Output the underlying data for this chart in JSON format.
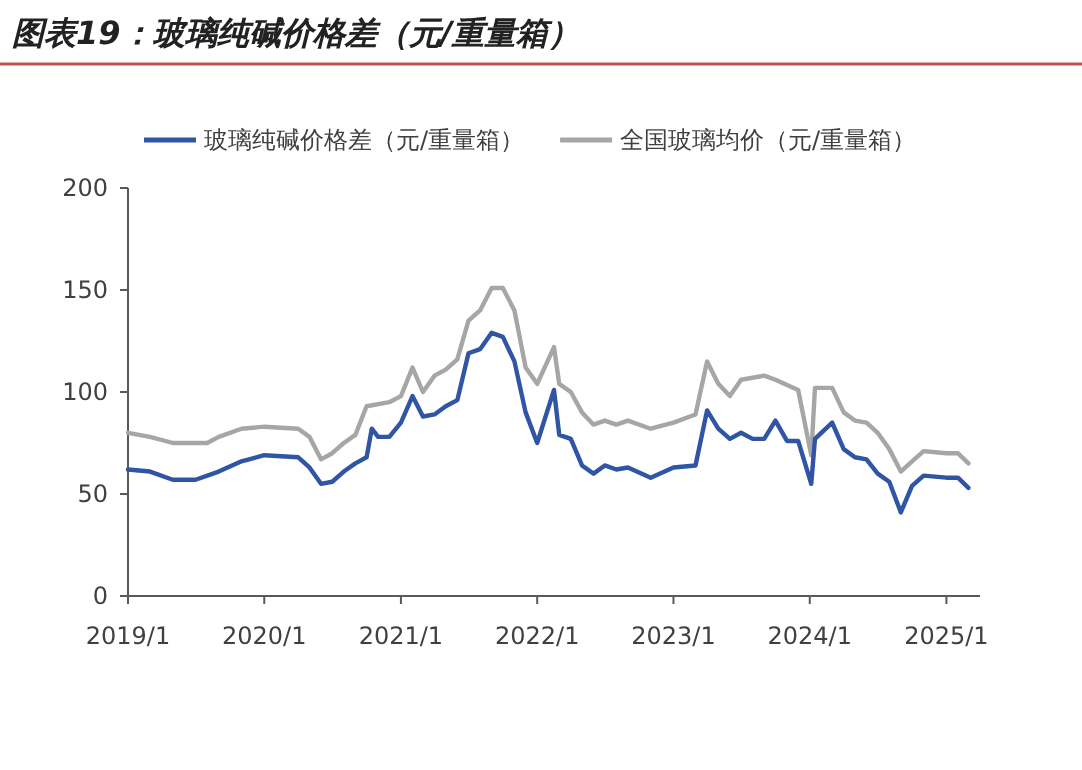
{
  "chart_data": {
    "type": "line",
    "title": "图表19：玻璃纯碱价格差（元/重量箱）",
    "legend": "top",
    "ylim": [
      0,
      200
    ],
    "yticks": [
      0,
      50,
      100,
      150,
      200
    ],
    "xlim": [
      "2019-01",
      "2025-04"
    ],
    "xticks": [
      {
        "value": "2019-01",
        "label": "2019/1"
      },
      {
        "value": "2020-01",
        "label": "2020/1"
      },
      {
        "value": "2021-01",
        "label": "2021/1"
      },
      {
        "value": "2022-01",
        "label": "2022/1"
      },
      {
        "value": "2023-01",
        "label": "2023/1"
      },
      {
        "value": "2024-01",
        "label": "2024/1"
      },
      {
        "value": "2025-01",
        "label": "2025/1"
      }
    ],
    "series": [
      {
        "name": "玻璃纯碱价格差（元/重量箱）",
        "color": "#2f55a4",
        "x": [
          "2019-01",
          "2019-03",
          "2019-05",
          "2019-07",
          "2019-09",
          "2019-11",
          "2020-01",
          "2020-04",
          "2020-05",
          "2020-06",
          "2020-07",
          "2020-08",
          "2020-09",
          "2020-10",
          "2020-10-15",
          "2020-11",
          "2020-12",
          "2021-01",
          "2021-02",
          "2021-03",
          "2021-04",
          "2021-05",
          "2021-06",
          "2021-07",
          "2021-08",
          "2021-09",
          "2021-10",
          "2021-11",
          "2021-12",
          "2022-01",
          "2022-02-15",
          "2022-03",
          "2022-04",
          "2022-05",
          "2022-06",
          "2022-07",
          "2022-08",
          "2022-09",
          "2022-11",
          "2023-01",
          "2023-03",
          "2023-04",
          "2023-05",
          "2023-06",
          "2023-07",
          "2023-08",
          "2023-09",
          "2023-10",
          "2023-11",
          "2023-12",
          "2024-01-05",
          "2024-01-15",
          "2024-02",
          "2024-03",
          "2024-04",
          "2024-05",
          "2024-06",
          "2024-07",
          "2024-08",
          "2024-09",
          "2024-10",
          "2024-11",
          "2025-01",
          "2025-02",
          "2025-03"
        ],
        "values": [
          62,
          61,
          57,
          57,
          61,
          66,
          69,
          68,
          63,
          55,
          56,
          61,
          65,
          68,
          82,
          78,
          78,
          85,
          98,
          88,
          89,
          93,
          96,
          119,
          121,
          129,
          127,
          115,
          90,
          75,
          101,
          79,
          77,
          64,
          60,
          64,
          62,
          63,
          58,
          63,
          64,
          91,
          82,
          77,
          80,
          77,
          77,
          86,
          76,
          76,
          55,
          77,
          80,
          85,
          72,
          68,
          67,
          60,
          56,
          41,
          54,
          59,
          58,
          58,
          53
        ]
      },
      {
        "name": "全国玻璃均价（元/重量箱）",
        "color": "#a6a6a6",
        "x": [
          "2019-01",
          "2019-03",
          "2019-05",
          "2019-08",
          "2019-09",
          "2019-11",
          "2020-01",
          "2020-04",
          "2020-05",
          "2020-06",
          "2020-07",
          "2020-08",
          "2020-09",
          "2020-10",
          "2020-12",
          "2021-01",
          "2021-02",
          "2021-03",
          "2021-04",
          "2021-05",
          "2021-06",
          "2021-07",
          "2021-08",
          "2021-09",
          "2021-10",
          "2021-11",
          "2021-12",
          "2022-01",
          "2022-02-15",
          "2022-03",
          "2022-04",
          "2022-05",
          "2022-06",
          "2022-07",
          "2022-08",
          "2022-09",
          "2022-11",
          "2023-01",
          "2023-03",
          "2023-04",
          "2023-05",
          "2023-06",
          "2023-07",
          "2023-09",
          "2023-10",
          "2023-12",
          "2024-01-05",
          "2024-01-15",
          "2024-03",
          "2024-04",
          "2024-05",
          "2024-06",
          "2024-07",
          "2024-08",
          "2024-09",
          "2024-10",
          "2024-11",
          "2025-01",
          "2025-02",
          "2025-03"
        ],
        "values": [
          80,
          78,
          75,
          75,
          78,
          82,
          83,
          82,
          78,
          67,
          70,
          75,
          79,
          93,
          95,
          98,
          112,
          100,
          108,
          111,
          116,
          135,
          140,
          151,
          151,
          140,
          112,
          104,
          122,
          104,
          100,
          90,
          84,
          86,
          84,
          86,
          82,
          85,
          89,
          115,
          104,
          98,
          106,
          108,
          106,
          101,
          69,
          102,
          102,
          90,
          86,
          85,
          80,
          72,
          61,
          66,
          71,
          70,
          70,
          65
        ]
      }
    ]
  }
}
